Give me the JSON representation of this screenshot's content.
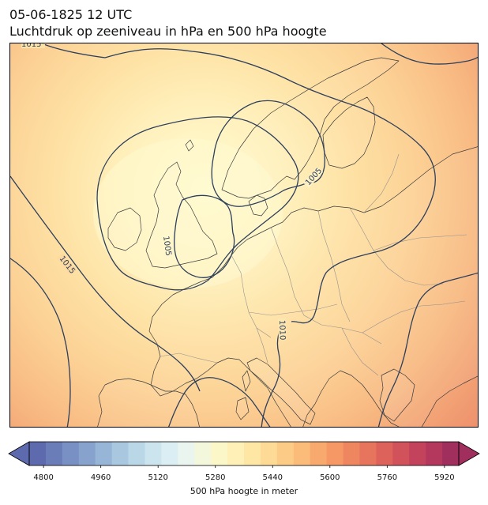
{
  "title": {
    "date": "05-06-1825 12 UTC",
    "main": "Luchtdruk op zeeniveau in hPa en 500 hPa hoogte"
  },
  "map": {
    "isobar_labels": [
      "1015",
      "1015",
      "1005",
      "1005",
      "1010"
    ],
    "isobar_color": "#2e3f5c",
    "coastline_color": "#3b3b3b",
    "border_color": "#8a8a8a"
  },
  "colorbar": {
    "ticks": [
      "4800",
      "4960",
      "5120",
      "5280",
      "5440",
      "5600",
      "5760",
      "5920"
    ],
    "label": "500 hPa hoogte in meter",
    "min": 4760,
    "max": 5960,
    "step": 40,
    "extend": "both",
    "colors": [
      "#5e6aae",
      "#6a7db8",
      "#7890c3",
      "#87a3cd",
      "#97b6d7",
      "#a9c8df",
      "#bad7e7",
      "#cbe4ee",
      "#dbeef3",
      "#e9f5ee",
      "#f3f8dd",
      "#fcf7c8",
      "#fef0b6",
      "#fee6a5",
      "#fdda95",
      "#fccb86",
      "#fbbb79",
      "#f8a96e",
      "#f59866",
      "#ee8660",
      "#e7745d",
      "#de625c",
      "#d2525b",
      "#c4435c",
      "#b4385d",
      "#a02f5e"
    ]
  }
}
